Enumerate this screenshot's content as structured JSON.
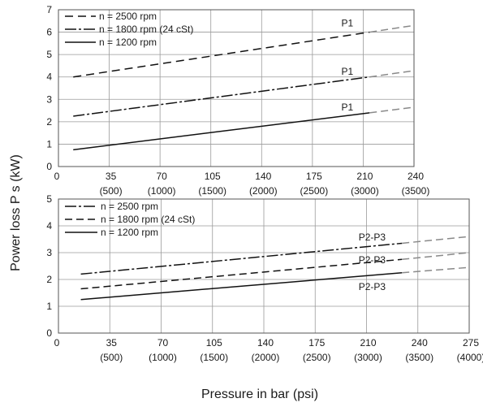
{
  "ylabel": "Power loss P s (kW)",
  "xlabel": "Pressure in bar (psi)",
  "chart_data": [
    {
      "type": "line",
      "grid": true,
      "xlim": [
        0,
        240
      ],
      "ylim": [
        0,
        7
      ],
      "xticks": [
        "0",
        "35",
        "70",
        "105",
        "140",
        "175",
        "210",
        "240"
      ],
      "xticks_psi": [
        "",
        "(500)",
        "(1000)",
        "(1500)",
        "(2000)",
        "(2500)",
        "(3000)",
        "(3500)"
      ],
      "yticks": [
        "0",
        "1",
        "2",
        "3",
        "4",
        "5",
        "6",
        "7"
      ],
      "legend_position": "top-left",
      "legend": [
        {
          "label": "n = 2500 rpm",
          "dash": "10,6"
        },
        {
          "label": "n = 1800 rpm (24 cSt)",
          "dash": "14,3,3,3"
        },
        {
          "label": "n = 1200 rpm",
          "dash": ""
        }
      ],
      "series": [
        {
          "name": "n = 2500 rpm",
          "color": "#111111",
          "dash": "10,6",
          "x": [
            10,
            210
          ],
          "y": [
            4.0,
            6.0
          ],
          "extension": {
            "x": [
              210,
              240
            ],
            "y": [
              6.0,
              6.3
            ]
          }
        },
        {
          "name": "n = 1800 rpm (24 cSt)",
          "color": "#111111",
          "dash": "14,3,3,3",
          "x": [
            10,
            210
          ],
          "y": [
            2.25,
            4.0
          ],
          "extension": {
            "x": [
              210,
              240
            ],
            "y": [
              4.0,
              4.28
            ]
          }
        },
        {
          "name": "n = 1200 rpm",
          "color": "#111111",
          "dash": "",
          "x": [
            10,
            210
          ],
          "y": [
            0.75,
            2.4
          ],
          "extension": {
            "x": [
              210,
              240
            ],
            "y": [
              2.4,
              2.65
            ]
          }
        }
      ],
      "annotations": [
        {
          "text": "P1",
          "x": 195,
          "y": 6.25
        },
        {
          "text": "P1",
          "x": 195,
          "y": 4.1
        },
        {
          "text": "P1",
          "x": 195,
          "y": 2.5
        }
      ]
    },
    {
      "type": "line",
      "grid": true,
      "xlim": [
        0,
        275
      ],
      "ylim": [
        0,
        5
      ],
      "xticks": [
        "0",
        "35",
        "70",
        "105",
        "140",
        "175",
        "210",
        "240",
        "275"
      ],
      "xticks_psi": [
        "",
        "(500)",
        "(1000)",
        "(1500)",
        "(2000)",
        "(2500)",
        "(3000)",
        "(3500)",
        "(4000)"
      ],
      "yticks": [
        "0",
        "1",
        "2",
        "3",
        "4",
        "5"
      ],
      "legend_position": "top-left",
      "legend": [
        {
          "label": "n = 2500 rpm",
          "dash": "14,3,3,3"
        },
        {
          "label": "n = 1800 rpm (24 cSt)",
          "dash": "9,5"
        },
        {
          "label": "n = 1200 rpm",
          "dash": ""
        }
      ],
      "series": [
        {
          "name": "n = 2500 rpm",
          "color": "#111111",
          "dash": "14,3,3,3",
          "x": [
            15,
            230
          ],
          "y": [
            2.2,
            3.35
          ],
          "extension": {
            "x": [
              230,
              275
            ],
            "y": [
              3.35,
              3.6
            ]
          }
        },
        {
          "name": "n = 1800 rpm (24 cSt)",
          "color": "#111111",
          "dash": "9,5",
          "x": [
            15,
            230
          ],
          "y": [
            1.65,
            2.75
          ],
          "extension": {
            "x": [
              230,
              275
            ],
            "y": [
              2.75,
              3.0
            ]
          }
        },
        {
          "name": "n = 1200 rpm",
          "color": "#111111",
          "dash": "",
          "x": [
            15,
            230
          ],
          "y": [
            1.25,
            2.25
          ],
          "extension": {
            "x": [
              230,
              275
            ],
            "y": [
              2.25,
              2.45
            ]
          }
        }
      ],
      "annotations": [
        {
          "text": "P2-P3",
          "x": 210,
          "y": 3.45
        },
        {
          "text": "P2-P3",
          "x": 210,
          "y": 2.6
        },
        {
          "text": "P2-P3",
          "x": 210,
          "y": 1.6
        }
      ]
    }
  ]
}
